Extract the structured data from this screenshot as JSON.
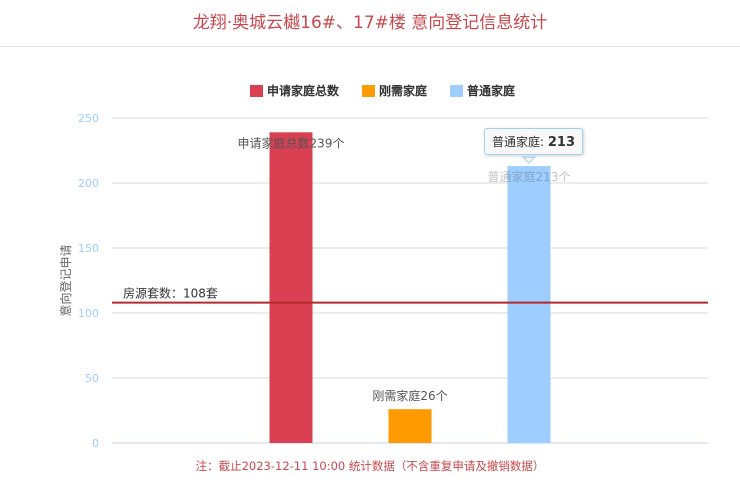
{
  "title": "龙翔·奥城云樾16#、17#楼 意向登记信息统计",
  "note": "注：截止2023-12-11 10:00 统计数据（不含重复申请及撤销数据）",
  "tooltip": {
    "label": "普通家庭",
    "value": "213"
  },
  "chart_data": {
    "type": "bar",
    "categories": [
      "申请家庭总数",
      "刚需家庭",
      "普通家庭"
    ],
    "values": [
      239,
      26,
      213
    ],
    "colors": [
      "#d94052",
      "#ff9a02",
      "#9dceff"
    ],
    "data_labels": [
      "申请家庭总数239个",
      "刚需家庭26个",
      "普通家庭213个"
    ],
    "ylabel": "意向登记申请",
    "xlabel": "",
    "ylim": [
      0,
      250
    ],
    "yticks": [
      0,
      50,
      100,
      150,
      200,
      250
    ],
    "grid": true,
    "legend": {
      "position": "top-center",
      "entries": [
        "申请家庭总数",
        "刚需家庭",
        "普通家庭"
      ]
    },
    "reference_line": {
      "label": "房源套数：108套",
      "value": 108,
      "color": "#b52a2d"
    }
  }
}
